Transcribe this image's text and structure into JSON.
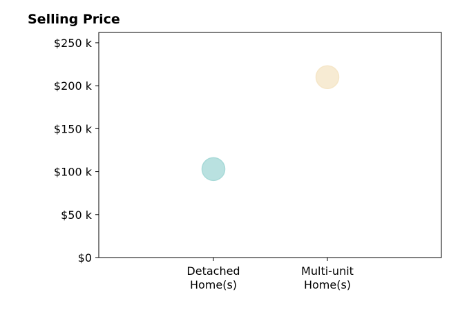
{
  "chart_data": {
    "type": "scatter",
    "title": "Selling Price",
    "xlabel": "",
    "ylabel": "",
    "categories": [
      "Detached\nHome(s)",
      "Multi-unit\nHome(s)"
    ],
    "ylim": [
      0,
      262000
    ],
    "yticks": [
      {
        "value": 0,
        "label": "$0"
      },
      {
        "value": 50000,
        "label": "$50 k"
      },
      {
        "value": 100000,
        "label": "$100 k"
      },
      {
        "value": 150000,
        "label": "$150 k"
      },
      {
        "value": 200000,
        "label": "$200 k"
      },
      {
        "value": 250000,
        "label": "$250 k"
      }
    ],
    "points": [
      {
        "category": "Detached\nHome(s)",
        "value": 103000,
        "color": "#a8dad8"
      },
      {
        "category": "Multi-unit\nHome(s)",
        "value": 210000,
        "color": "#f5e6c8"
      }
    ],
    "grid": false,
    "legend": "none"
  }
}
